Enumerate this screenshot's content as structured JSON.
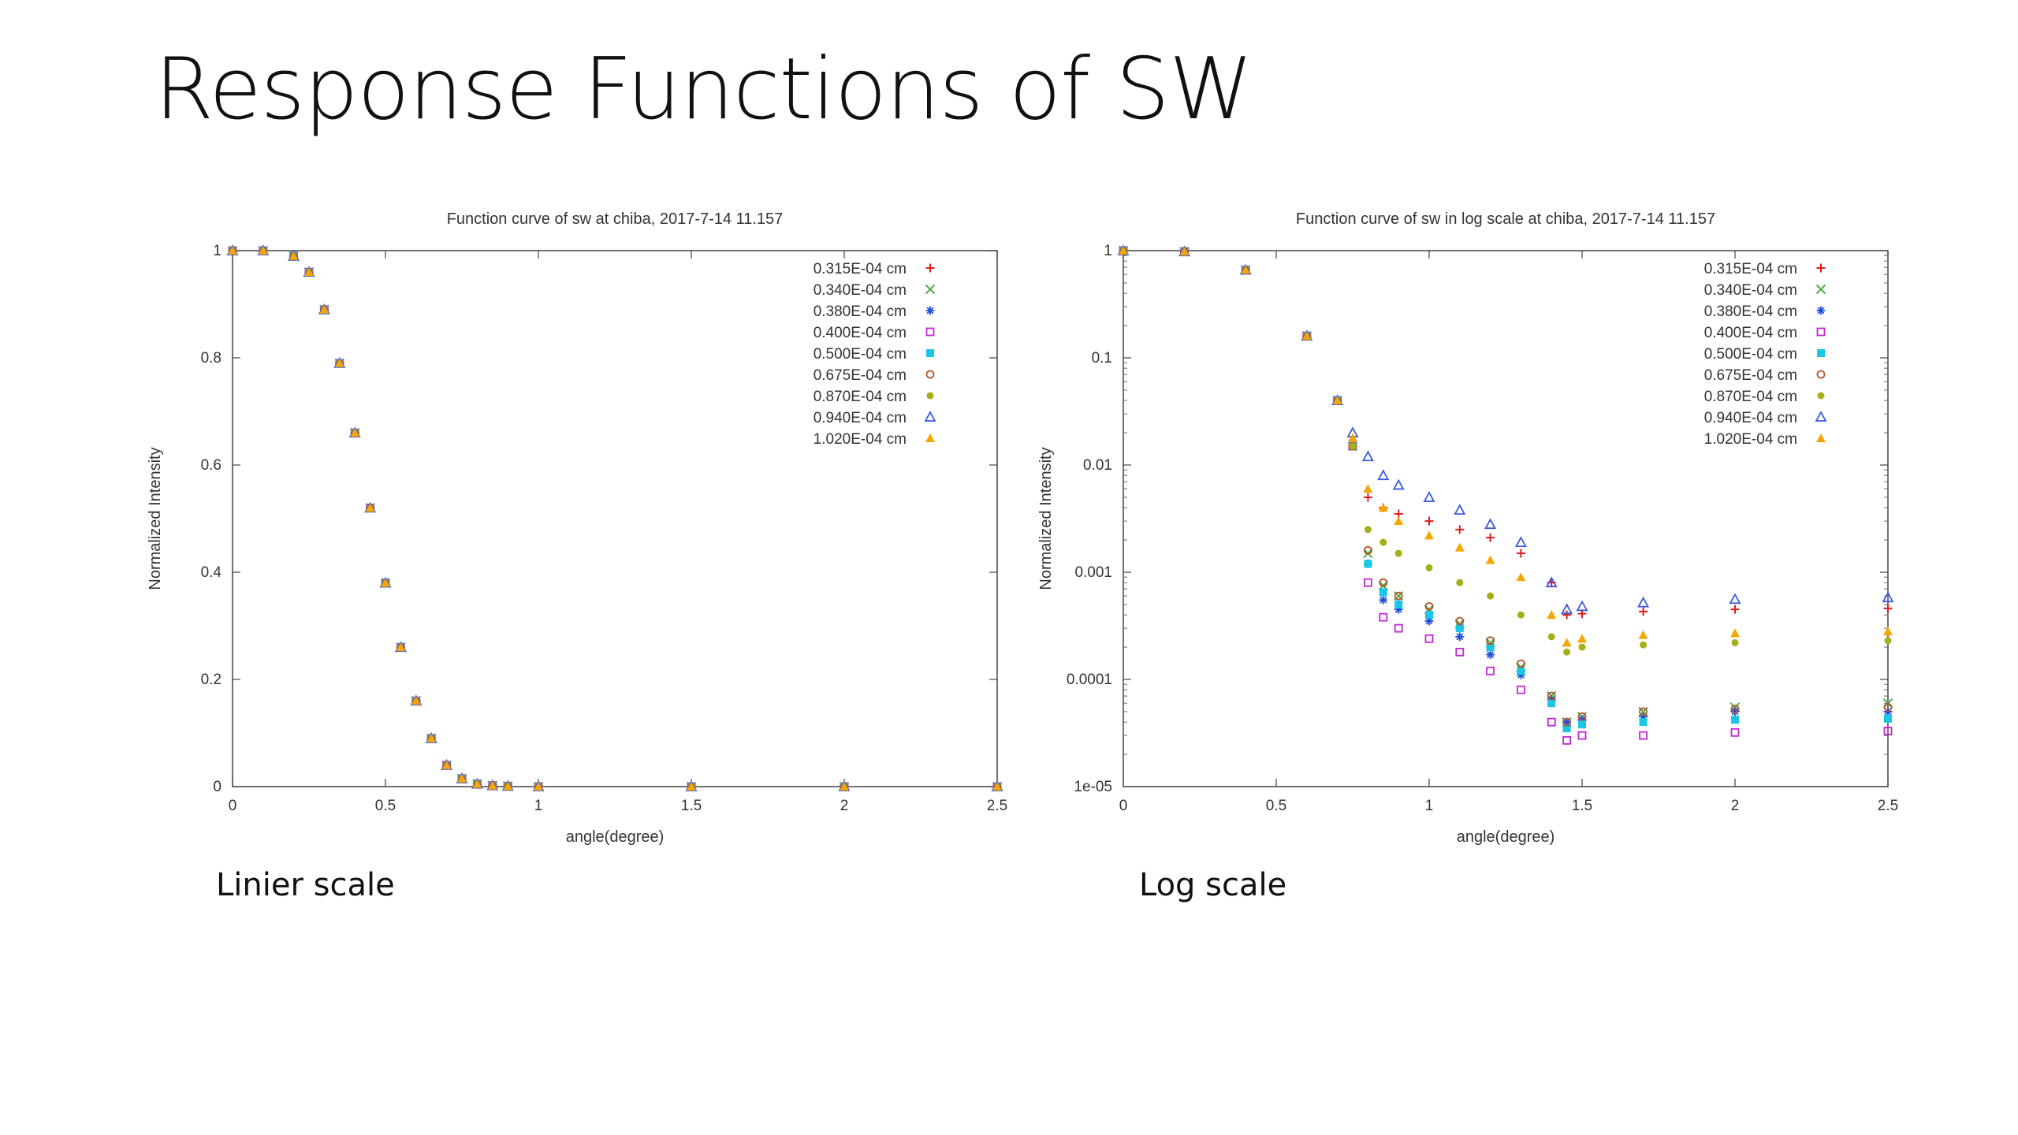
{
  "slide": {
    "title": "Response Functions of SW",
    "captions": {
      "left": "Linier scale",
      "right": "Log scale"
    }
  },
  "series_styles": [
    {
      "color": "#e41a1c",
      "marker": "plus"
    },
    {
      "color": "#4daf4a",
      "marker": "cross"
    },
    {
      "color": "#1f4fd8",
      "marker": "star"
    },
    {
      "color": "#c026d3",
      "marker": "open-square"
    },
    {
      "color": "#19c6e6",
      "marker": "filled-square"
    },
    {
      "color": "#b5542b",
      "marker": "open-circle"
    },
    {
      "color": "#a3b018",
      "marker": "filled-circle"
    },
    {
      "color": "#3b5bdb",
      "marker": "open-triangle"
    },
    {
      "color": "#f5a700",
      "marker": "filled-triangle"
    }
  ],
  "chart_data": [
    {
      "type": "scatter",
      "title": "Function curve of sw at chiba, 2017-7-14 11.157",
      "xlabel": "angle(degree)",
      "ylabel": "Normalized Intensity",
      "xlim": [
        0,
        2.5
      ],
      "ylim": [
        0,
        1
      ],
      "yscale": "linear",
      "x_ticks": [
        "0",
        "0.5",
        "1",
        "1.5",
        "2",
        "2.5"
      ],
      "y_ticks": [
        "0",
        "0.2",
        "0.4",
        "0.6",
        "0.8",
        "1"
      ],
      "legend_position": "top-right",
      "grid": false,
      "x": [
        0,
        0.1,
        0.2,
        0.25,
        0.3,
        0.35,
        0.4,
        0.45,
        0.5,
        0.55,
        0.6,
        0.65,
        0.7,
        0.75,
        0.8,
        0.85,
        0.9,
        1.0,
        1.5,
        2.0,
        2.5
      ],
      "series": [
        {
          "name": "0.315E-04 cm",
          "values": [
            1,
            1,
            0.99,
            0.96,
            0.89,
            0.79,
            0.66,
            0.52,
            0.38,
            0.26,
            0.16,
            0.09,
            0.04,
            0.015,
            0.005,
            0.002,
            0.001,
            0,
            0,
            0,
            0
          ]
        },
        {
          "name": "0.340E-04 cm",
          "values": [
            1,
            1,
            0.99,
            0.96,
            0.89,
            0.79,
            0.66,
            0.52,
            0.38,
            0.26,
            0.16,
            0.09,
            0.04,
            0.015,
            0.005,
            0.002,
            0.001,
            0,
            0,
            0,
            0
          ]
        },
        {
          "name": "0.380E-04 cm",
          "values": [
            1,
            1,
            0.99,
            0.96,
            0.89,
            0.79,
            0.66,
            0.52,
            0.38,
            0.26,
            0.16,
            0.09,
            0.04,
            0.015,
            0.005,
            0.002,
            0.001,
            0,
            0,
            0,
            0
          ]
        },
        {
          "name": "0.400E-04 cm",
          "values": [
            1,
            1,
            0.99,
            0.96,
            0.89,
            0.79,
            0.66,
            0.52,
            0.38,
            0.26,
            0.16,
            0.09,
            0.04,
            0.015,
            0.005,
            0.002,
            0.001,
            0,
            0,
            0,
            0
          ]
        },
        {
          "name": "0.500E-04 cm",
          "values": [
            1,
            1,
            0.99,
            0.96,
            0.89,
            0.79,
            0.66,
            0.52,
            0.38,
            0.26,
            0.16,
            0.09,
            0.04,
            0.015,
            0.005,
            0.002,
            0.001,
            0,
            0,
            0,
            0
          ]
        },
        {
          "name": "0.675E-04 cm",
          "values": [
            1,
            1,
            0.99,
            0.96,
            0.89,
            0.79,
            0.66,
            0.52,
            0.38,
            0.26,
            0.16,
            0.09,
            0.04,
            0.015,
            0.005,
            0.002,
            0.001,
            0,
            0,
            0,
            0
          ]
        },
        {
          "name": "0.870E-04 cm",
          "values": [
            1,
            1,
            0.99,
            0.96,
            0.89,
            0.79,
            0.66,
            0.52,
            0.38,
            0.26,
            0.16,
            0.09,
            0.04,
            0.015,
            0.005,
            0.002,
            0.001,
            0,
            0,
            0,
            0
          ]
        },
        {
          "name": "0.940E-04 cm",
          "values": [
            1,
            1,
            0.99,
            0.96,
            0.89,
            0.79,
            0.66,
            0.52,
            0.38,
            0.26,
            0.16,
            0.09,
            0.04,
            0.015,
            0.005,
            0.002,
            0.001,
            0,
            0,
            0,
            0
          ]
        },
        {
          "name": "1.020E-04 cm",
          "values": [
            1,
            1,
            0.99,
            0.96,
            0.89,
            0.79,
            0.66,
            0.52,
            0.38,
            0.26,
            0.16,
            0.09,
            0.04,
            0.015,
            0.005,
            0.002,
            0.001,
            0,
            0,
            0,
            0
          ]
        }
      ]
    },
    {
      "type": "scatter",
      "title": "Function curve of sw in log scale at chiba, 2017-7-14 11.157",
      "xlabel": "angle(degree)",
      "ylabel": "Normalized Intensity",
      "xlim": [
        0,
        2.5
      ],
      "ylim": [
        1e-05,
        1
      ],
      "yscale": "log",
      "x_ticks": [
        "0",
        "0.5",
        "1",
        "1.5",
        "2",
        "2.5"
      ],
      "y_ticks": [
        "1e-05",
        "0.0001",
        "0.001",
        "0.01",
        "0.1",
        "1"
      ],
      "legend_position": "top-right",
      "grid": false,
      "x": [
        0,
        0.2,
        0.4,
        0.6,
        0.7,
        0.75,
        0.8,
        0.85,
        0.9,
        1.0,
        1.1,
        1.2,
        1.3,
        1.4,
        1.45,
        1.5,
        1.7,
        2.0,
        2.5
      ],
      "series": [
        {
          "name": "0.315E-04 cm",
          "values": [
            1,
            0.98,
            0.66,
            0.16,
            0.04,
            0.015,
            0.005,
            0.004,
            0.0035,
            0.003,
            0.0025,
            0.0021,
            0.0015,
            0.0008,
            0.0004,
            0.00041,
            0.00043,
            0.00045,
            0.00046
          ]
        },
        {
          "name": "0.340E-04 cm",
          "values": [
            1,
            0.98,
            0.66,
            0.16,
            0.04,
            0.015,
            0.0015,
            0.00075,
            0.0006,
            0.00045,
            0.00033,
            0.00022,
            0.00013,
            7e-05,
            4e-05,
            4.5e-05,
            5e-05,
            5.5e-05,
            6e-05
          ]
        },
        {
          "name": "0.380E-04 cm",
          "values": [
            1,
            0.98,
            0.66,
            0.16,
            0.04,
            0.015,
            0.0012,
            0.00055,
            0.00045,
            0.00035,
            0.00025,
            0.00017,
            0.00011,
            6.5e-05,
            4e-05,
            4.2e-05,
            4.5e-05,
            5e-05,
            5e-05
          ]
        },
        {
          "name": "0.400E-04 cm",
          "values": [
            1,
            0.98,
            0.66,
            0.16,
            0.04,
            0.015,
            0.0008,
            0.00038,
            0.0003,
            0.00024,
            0.00018,
            0.00012,
            8e-05,
            4e-05,
            2.7e-05,
            3e-05,
            3e-05,
            3.2e-05,
            3.3e-05
          ]
        },
        {
          "name": "0.500E-04 cm",
          "values": [
            1,
            0.98,
            0.66,
            0.16,
            0.04,
            0.015,
            0.0012,
            0.00065,
            0.0005,
            0.0004,
            0.0003,
            0.0002,
            0.00012,
            6e-05,
            3.5e-05,
            3.8e-05,
            4e-05,
            4.2e-05,
            4.3e-05
          ]
        },
        {
          "name": "0.675E-04 cm",
          "values": [
            1,
            0.98,
            0.66,
            0.16,
            0.04,
            0.015,
            0.0016,
            0.0008,
            0.0006,
            0.00048,
            0.00035,
            0.00023,
            0.00014,
            7e-05,
            4e-05,
            4.5e-05,
            5e-05,
            5.3e-05,
            5.5e-05
          ]
        },
        {
          "name": "0.870E-04 cm",
          "values": [
            1,
            0.98,
            0.66,
            0.16,
            0.04,
            0.015,
            0.0025,
            0.0019,
            0.0015,
            0.0011,
            0.0008,
            0.0006,
            0.0004,
            0.00025,
            0.00018,
            0.0002,
            0.00021,
            0.00022,
            0.00023
          ]
        },
        {
          "name": "0.940E-04 cm",
          "values": [
            1,
            0.98,
            0.66,
            0.16,
            0.04,
            0.02,
            0.012,
            0.008,
            0.0065,
            0.005,
            0.0038,
            0.0028,
            0.0019,
            0.0008,
            0.00045,
            0.00048,
            0.00052,
            0.00056,
            0.00058
          ]
        },
        {
          "name": "1.020E-04 cm",
          "values": [
            1,
            0.98,
            0.66,
            0.16,
            0.04,
            0.018,
            0.006,
            0.004,
            0.003,
            0.0022,
            0.0017,
            0.0013,
            0.0009,
            0.0004,
            0.00022,
            0.00024,
            0.00026,
            0.00027,
            0.00028
          ]
        }
      ]
    }
  ]
}
